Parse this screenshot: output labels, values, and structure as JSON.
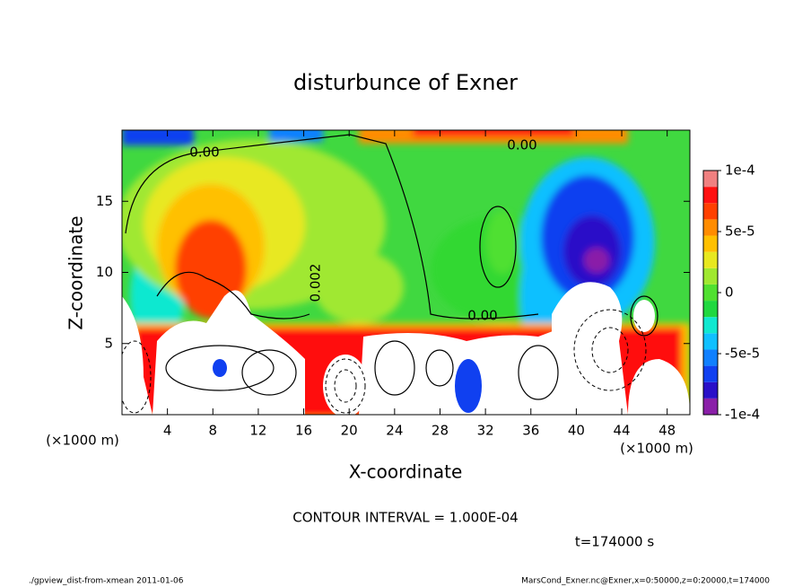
{
  "chart_data": {
    "type": "contour",
    "title": "disturbunce of Exner",
    "x_label": "X-coordinate",
    "y_label": "Z-coordinate",
    "axis_unit": "(×1000 m)",
    "xlim": [
      0,
      50
    ],
    "xticks": [
      4,
      8,
      12,
      16,
      20,
      24,
      28,
      32,
      36,
      40,
      44,
      48
    ],
    "ylim": [
      0,
      20
    ],
    "yticks": [
      5,
      10,
      15
    ],
    "colorbar": {
      "lim": [
        -0.0001,
        0.0001
      ],
      "ticks": [
        {
          "value": 0.0001,
          "label": "1e-4"
        },
        {
          "value": 5e-05,
          "label": "5e-5"
        },
        {
          "value": 0,
          "label": "0"
        },
        {
          "value": -5e-05,
          "label": "-5e-5"
        },
        {
          "value": -0.0001,
          "label": "-1e-4"
        }
      ],
      "colors": [
        "#8a1fa8",
        "#2a10c8",
        "#1040f0",
        "#1080ff",
        "#10c0ff",
        "#10e8d0",
        "#20d840",
        "#50e030",
        "#a0e830",
        "#e8e820",
        "#ffc000",
        "#ff8c00",
        "#ff4000",
        "#ff1010",
        "#f08080"
      ]
    },
    "contour_labels": [
      "0.00",
      "0.00",
      "0.002",
      "0.00"
    ],
    "contour_interval": "CONTOUR INTERVAL = 1.000E-04",
    "time_label": "t=174000 s",
    "footer_left": "./gpview_dist-from-xmean  2011-01-06",
    "footer_right": "MarsCond_Exner.nc@Exner,x=0:50000,z=0:20000,t=174000"
  }
}
